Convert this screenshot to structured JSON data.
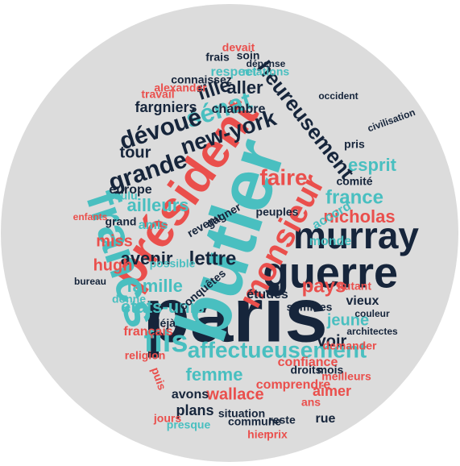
{
  "words": [
    {
      "text": "paris",
      "color": "#16253b"
    },
    {
      "text": "butler",
      "color": "#49bfc0"
    },
    {
      "text": "président",
      "color": "#ea4f4c"
    },
    {
      "text": "francs",
      "color": "#49bfc0"
    },
    {
      "text": "guerre",
      "color": "#16253b"
    },
    {
      "text": "murray",
      "color": "#16253b"
    },
    {
      "text": "monsieur",
      "color": "#ea4f4c"
    },
    {
      "text": "sénat",
      "color": "#49bfc0"
    },
    {
      "text": "dévoué",
      "color": "#16253b"
    },
    {
      "text": "grande",
      "color": "#16253b"
    },
    {
      "text": "new-york",
      "color": "#16253b"
    },
    {
      "text": "heureusement",
      "color": "#16253b"
    },
    {
      "text": "faire",
      "color": "#ea4f4c"
    },
    {
      "text": "france",
      "color": "#49bfc0"
    },
    {
      "text": "esprit",
      "color": "#49bfc0"
    },
    {
      "text": "nicholas",
      "color": "#ea4f4c"
    },
    {
      "text": "fils",
      "color": "#49bfc0"
    },
    {
      "text": "affectueusement",
      "color": "#49bfc0"
    },
    {
      "text": "pays",
      "color": "#ea4f4c"
    },
    {
      "text": "etats-unis",
      "color": "#49bfc0"
    },
    {
      "text": "famille",
      "color": "#49bfc0"
    },
    {
      "text": "avenir",
      "color": "#16253b"
    },
    {
      "text": "ailleurs",
      "color": "#49bfc0"
    },
    {
      "text": "miss",
      "color": "#ea4f4c"
    },
    {
      "text": "hugh",
      "color": "#ea4f4c"
    },
    {
      "text": "femme",
      "color": "#49bfc0"
    },
    {
      "text": "wallace",
      "color": "#ea4f4c"
    },
    {
      "text": "plans",
      "color": "#16253b"
    },
    {
      "text": "aimer",
      "color": "#ea4f4c"
    },
    {
      "text": "voir",
      "color": "#16253b"
    },
    {
      "text": "jeune",
      "color": "#49bfc0"
    },
    {
      "text": "confiance",
      "color": "#ea4f4c"
    },
    {
      "text": "lettre",
      "color": "#16253b"
    },
    {
      "text": "études",
      "color": "#16253b"
    },
    {
      "text": "tour",
      "color": "#16253b"
    },
    {
      "text": "fargniers",
      "color": "#16253b"
    },
    {
      "text": "aller",
      "color": "#16253b"
    },
    {
      "text": "fille",
      "color": "#16253b"
    },
    {
      "text": "chambre",
      "color": "#16253b"
    },
    {
      "text": "europe",
      "color": "#16253b"
    },
    {
      "text": "amis",
      "color": "#49bfc0"
    },
    {
      "text": "français",
      "color": "#ea4f4c"
    },
    {
      "text": "déjà",
      "color": "#16253b"
    },
    {
      "text": "accord",
      "color": "#49bfc0"
    },
    {
      "text": "monde",
      "color": "#49bfc0"
    },
    {
      "text": "rue",
      "color": "#16253b"
    },
    {
      "text": "ans",
      "color": "#ea4f4c"
    },
    {
      "text": "avons",
      "color": "#16253b"
    },
    {
      "text": "vieux",
      "color": "#16253b"
    },
    {
      "text": "respect",
      "color": "#49bfc0"
    },
    {
      "text": "relations",
      "color": "#49bfc0"
    },
    {
      "text": "connaissez",
      "color": "#16253b"
    },
    {
      "text": "alexander",
      "color": "#ea4f4c"
    },
    {
      "text": "possible",
      "color": "#49bfc0"
    },
    {
      "text": "travail",
      "color": "#ea4f4c"
    },
    {
      "text": "religion",
      "color": "#ea4f4c"
    },
    {
      "text": "situation",
      "color": "#16253b"
    },
    {
      "text": "comprendre",
      "color": "#ea4f4c"
    },
    {
      "text": "meilleurs",
      "color": "#ea4f4c"
    },
    {
      "text": "mois",
      "color": "#16253b"
    },
    {
      "text": "droits",
      "color": "#16253b"
    },
    {
      "text": "demander",
      "color": "#ea4f4c"
    },
    {
      "text": "soin",
      "color": "#16253b"
    },
    {
      "text": "frais",
      "color": "#16253b"
    },
    {
      "text": "pris",
      "color": "#16253b"
    },
    {
      "text": "gagner",
      "color": "#16253b"
    },
    {
      "text": "revenu",
      "color": "#16253b"
    },
    {
      "text": "peuples",
      "color": "#16253b"
    },
    {
      "text": "conquêtes",
      "color": "#16253b"
    },
    {
      "text": "grand",
      "color": "#16253b"
    },
    {
      "text": "donne",
      "color": "#49bfc0"
    },
    {
      "text": "jours",
      "color": "#ea4f4c"
    },
    {
      "text": "presque",
      "color": "#49bfc0"
    },
    {
      "text": "commune",
      "color": "#16253b"
    },
    {
      "text": "reste",
      "color": "#16253b"
    },
    {
      "text": "prix",
      "color": "#ea4f4c"
    },
    {
      "text": "hier",
      "color": "#ea4f4c"
    },
    {
      "text": "puis",
      "color": "#ea4f4c"
    },
    {
      "text": "sommes",
      "color": "#16253b"
    },
    {
      "text": "devait",
      "color": "#ea4f4c"
    },
    {
      "text": "autant",
      "color": "#ea4f4c"
    },
    {
      "text": "voulu",
      "color": "#49bfc0"
    },
    {
      "text": "comité",
      "color": "#16253b"
    },
    {
      "text": "enfants",
      "color": "#ea4f4c"
    },
    {
      "text": "bureau",
      "color": "#16253b"
    },
    {
      "text": "couleur",
      "color": "#16253b"
    },
    {
      "text": "architectes",
      "color": "#16253b"
    },
    {
      "text": "civilisation",
      "color": "#16253b"
    },
    {
      "text": "dépense",
      "color": "#16253b"
    },
    {
      "text": "occident",
      "color": "#16253b"
    }
  ]
}
